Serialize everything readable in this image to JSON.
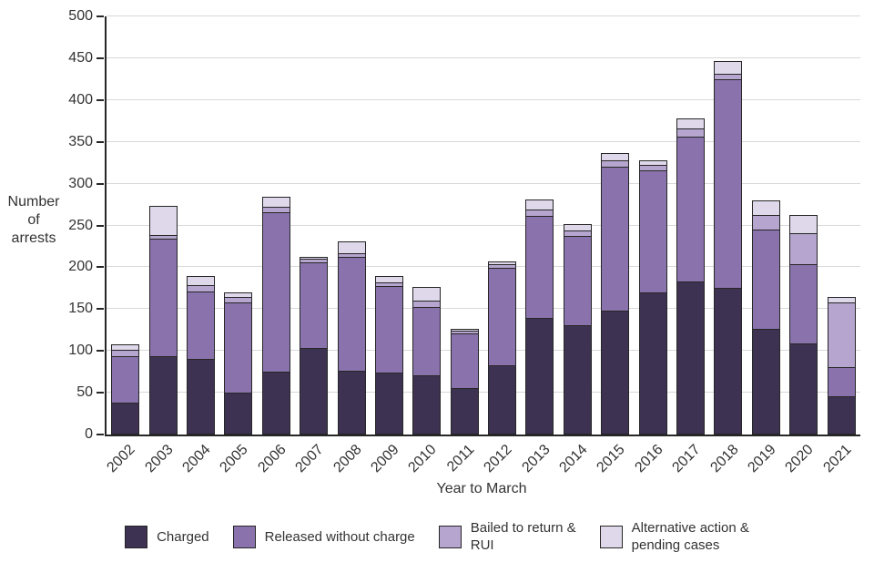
{
  "chart_data": {
    "type": "bar",
    "stacked": true,
    "title": "",
    "xlabel": "Year to March",
    "ylabel": "Number of arrests",
    "ylabel_lines": [
      "Number",
      "of",
      "arrests"
    ],
    "ylim": [
      0,
      500
    ],
    "ytick_step": 50,
    "ytick_values": [
      0,
      50,
      100,
      150,
      200,
      250,
      300,
      350,
      400,
      450,
      500
    ],
    "grid": true,
    "legend_position": "bottom",
    "axis_color": "#262626",
    "grid_color": "#d9d9d9",
    "text_color": "#333333",
    "categories": [
      "2002",
      "2003",
      "2004",
      "2005",
      "2006",
      "2007",
      "2008",
      "2009",
      "2010",
      "2011",
      "2012",
      "2013",
      "2014",
      "2015",
      "2016",
      "2017",
      "2018",
      "2019",
      "2020",
      "2021"
    ],
    "series": [
      {
        "name": "Charged",
        "color": "#3e3252",
        "values": [
          37,
          93,
          89,
          49,
          74,
          102,
          75,
          73,
          70,
          54,
          82,
          138,
          130,
          147,
          169,
          182,
          174,
          125,
          108,
          45
        ]
      },
      {
        "name": "Released without charge",
        "color": "#8a73ad",
        "values": [
          56,
          140,
          81,
          108,
          191,
          103,
          136,
          104,
          81,
          66,
          116,
          122,
          106,
          172,
          146,
          173,
          250,
          119,
          95,
          35
        ]
      },
      {
        "name": "Bailed to return & RUI",
        "color": "#b5a5cf",
        "values": [
          7,
          5,
          8,
          6,
          6,
          4,
          5,
          4,
          8,
          3,
          5,
          8,
          7,
          8,
          7,
          10,
          6,
          18,
          37,
          77
        ]
      },
      {
        "name": "Alternative action & pending cases",
        "color": "#ded8ea",
        "values": [
          8,
          35,
          12,
          7,
          13,
          3,
          15,
          9,
          18,
          3,
          4,
          13,
          9,
          10,
          6,
          13,
          17,
          18,
          23,
          8
        ]
      }
    ],
    "legend": [
      {
        "lines": [
          "Charged"
        ]
      },
      {
        "lines": [
          "Released without charge"
        ]
      },
      {
        "lines": [
          "Bailed to return &",
          "RUI"
        ]
      },
      {
        "lines": [
          "Alternative action &",
          "pending cases"
        ]
      }
    ]
  }
}
